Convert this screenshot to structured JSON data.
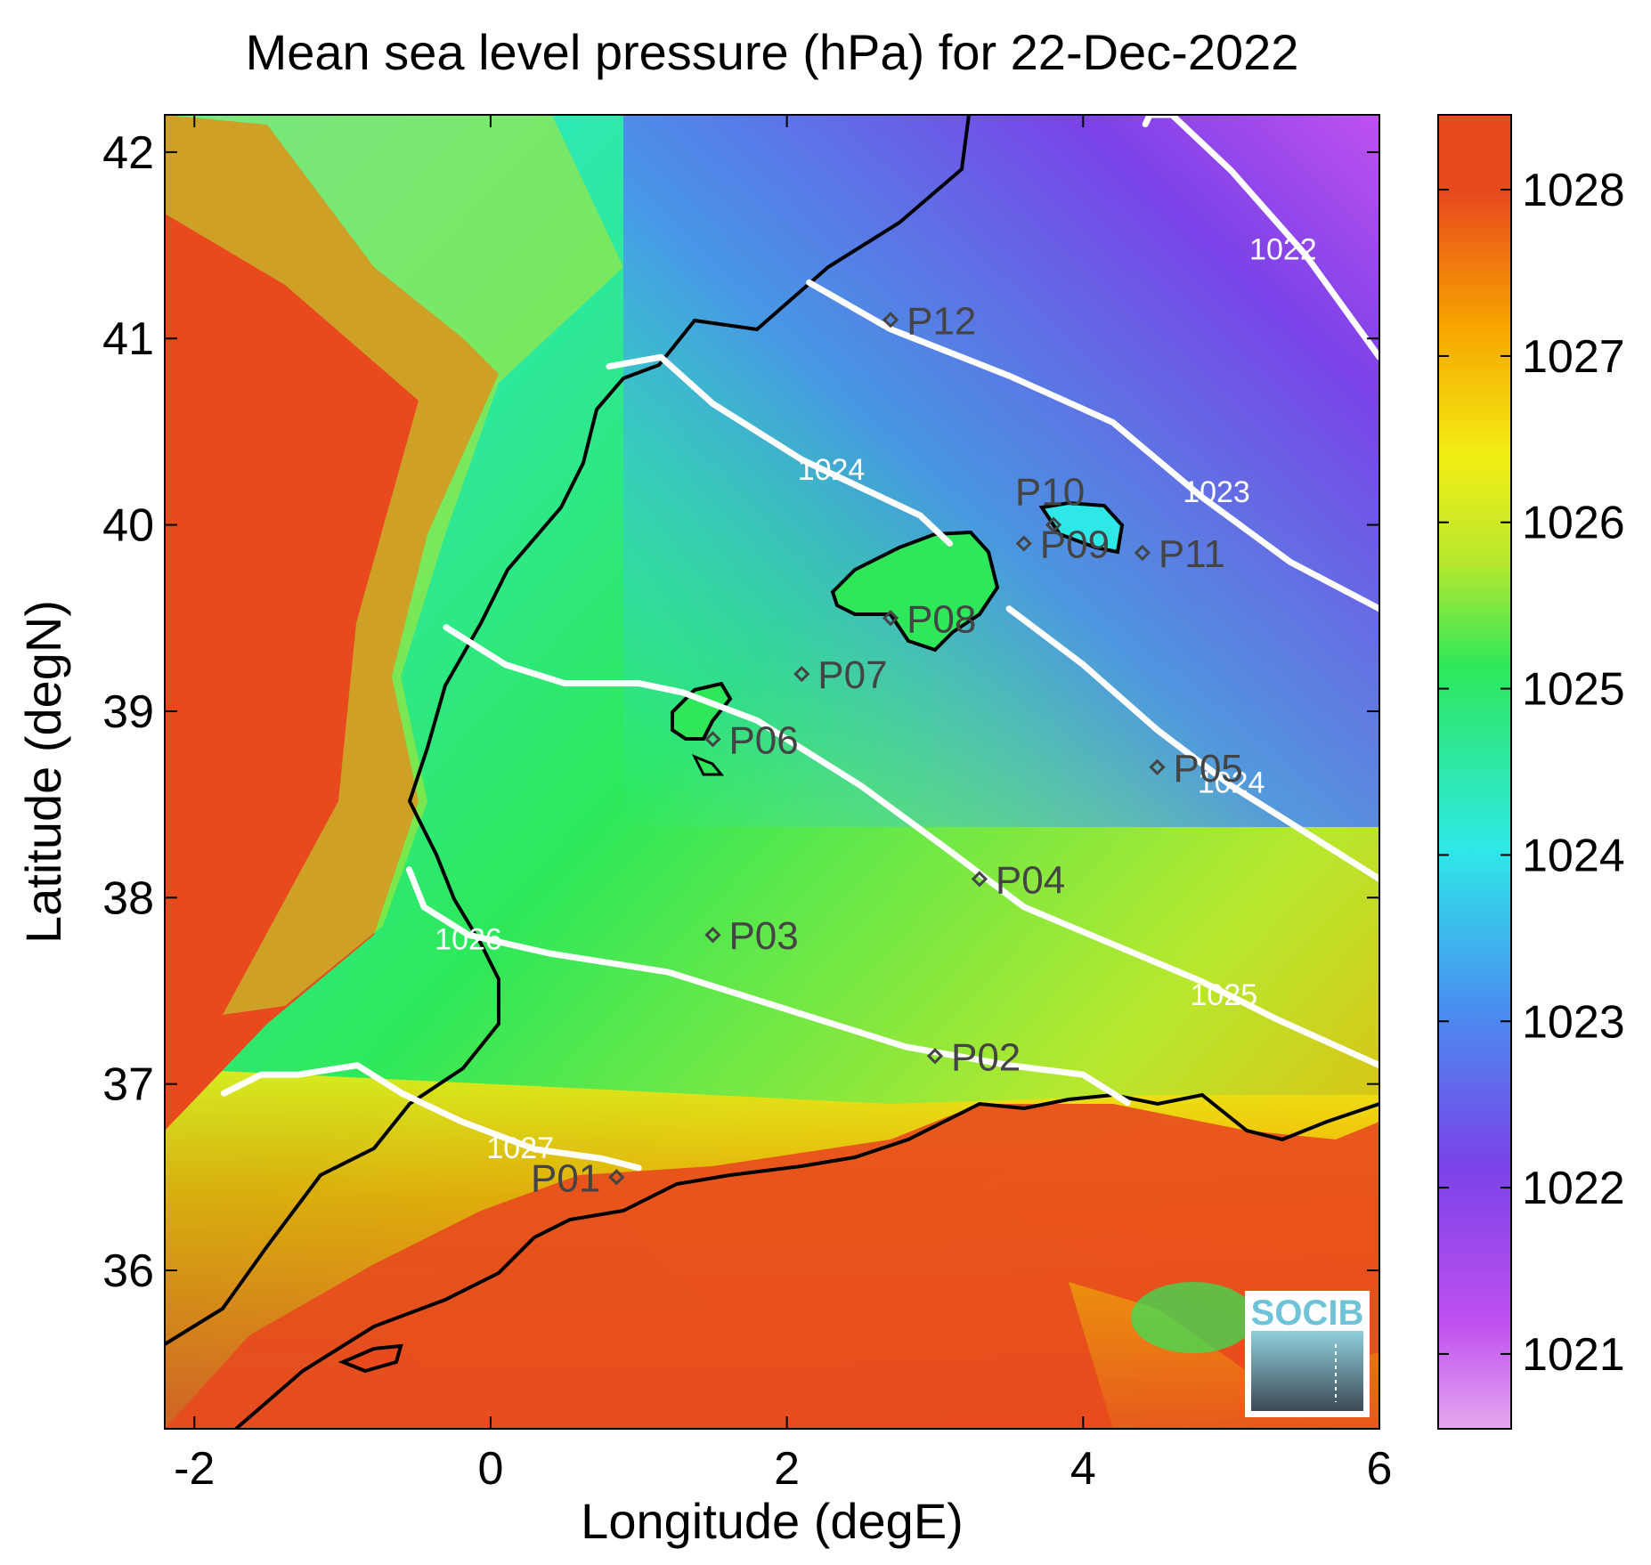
{
  "title": "Mean sea level pressure (hPa) for 22-Dec-2022",
  "x_axis": {
    "label": "Longitude (degE)",
    "range": [
      -2.2,
      6
    ],
    "ticks": [
      {
        "value": -2,
        "label": "-2"
      },
      {
        "value": 0,
        "label": "0"
      },
      {
        "value": 2,
        "label": "2"
      },
      {
        "value": 4,
        "label": "4"
      },
      {
        "value": 6,
        "label": "6"
      }
    ]
  },
  "y_axis": {
    "label": "Latitude (degN)",
    "range": [
      35.15,
      42.2
    ],
    "ticks": [
      {
        "value": 36,
        "label": "36"
      },
      {
        "value": 37,
        "label": "37"
      },
      {
        "value": 38,
        "label": "38"
      },
      {
        "value": 39,
        "label": "39"
      },
      {
        "value": 40,
        "label": "40"
      },
      {
        "value": 41,
        "label": "41"
      },
      {
        "value": 42,
        "label": "42"
      }
    ]
  },
  "colorbar": {
    "range": [
      1020.55,
      1028.45
    ],
    "ticks": [
      {
        "value": 1021,
        "label": "1021"
      },
      {
        "value": 1022,
        "label": "1022"
      },
      {
        "value": 1023,
        "label": "1023"
      },
      {
        "value": 1024,
        "label": "1024"
      },
      {
        "value": 1025,
        "label": "1025"
      },
      {
        "value": 1026,
        "label": "1026"
      },
      {
        "value": 1027,
        "label": "1027"
      },
      {
        "value": 1028,
        "label": "1028"
      }
    ],
    "colors": [
      "#e6a8ef",
      "#c050f0",
      "#7a42e8",
      "#4a8ef0",
      "#2ee8e8",
      "#2ee85a",
      "#b8e82e",
      "#f2ee14",
      "#f7a400",
      "#e84a1e"
    ]
  },
  "stations": [
    {
      "name": "P01",
      "lon": 0.85,
      "lat": 36.5
    },
    {
      "name": "P02",
      "lon": 3.0,
      "lat": 37.15
    },
    {
      "name": "P03",
      "lon": 1.5,
      "lat": 37.8
    },
    {
      "name": "P04",
      "lon": 3.3,
      "lat": 38.1
    },
    {
      "name": "P05",
      "lon": 4.5,
      "lat": 38.7
    },
    {
      "name": "P06",
      "lon": 1.5,
      "lat": 38.85
    },
    {
      "name": "P07",
      "lon": 2.1,
      "lat": 39.2
    },
    {
      "name": "P08",
      "lon": 2.7,
      "lat": 39.5
    },
    {
      "name": "P09",
      "lon": 3.6,
      "lat": 39.9
    },
    {
      "name": "P10",
      "lon": 3.8,
      "lat": 40.0
    },
    {
      "name": "P11",
      "lon": 4.4,
      "lat": 39.85
    },
    {
      "name": "P12",
      "lon": 2.7,
      "lat": 41.1
    }
  ],
  "contours": [
    {
      "level": "1022",
      "label": "1022",
      "points": [
        [
          4.42,
          42.15
        ],
        [
          4.45,
          42.2
        ],
        [
          4.6,
          42.2
        ],
        [
          5.0,
          41.9
        ],
        [
          5.5,
          41.45
        ],
        [
          6.0,
          40.9
        ]
      ],
      "label_at": [
        5.35,
        41.48
      ]
    },
    {
      "level": "1023",
      "label": "1023",
      "points": [
        [
          2.15,
          41.3
        ],
        [
          2.7,
          41.05
        ],
        [
          3.5,
          40.8
        ],
        [
          4.2,
          40.55
        ],
        [
          4.8,
          40.15
        ],
        [
          5.4,
          39.8
        ],
        [
          6.0,
          39.55
        ]
      ],
      "label_at": [
        4.9,
        40.18
      ]
    },
    {
      "level": "1024",
      "label": "1024",
      "points": [
        [
          0.8,
          40.85
        ],
        [
          1.15,
          40.9
        ],
        [
          1.5,
          40.65
        ],
        [
          2.1,
          40.35
        ],
        [
          2.5,
          40.2
        ],
        [
          2.9,
          40.05
        ],
        [
          3.1,
          39.9
        ]
      ],
      "label_at": [
        2.3,
        40.3
      ]
    },
    {
      "level": "1024",
      "label": "1024",
      "points": [
        [
          3.5,
          39.55
        ],
        [
          4.0,
          39.25
        ],
        [
          4.5,
          38.9
        ],
        [
          5.0,
          38.6
        ],
        [
          5.5,
          38.35
        ],
        [
          6.0,
          38.1
        ]
      ],
      "label_at": [
        5.0,
        38.62
      ]
    },
    {
      "level": "1025",
      "label": "1025",
      "points": [
        [
          -0.3,
          39.45
        ],
        [
          0.1,
          39.25
        ],
        [
          0.5,
          39.15
        ],
        [
          1.0,
          39.15
        ],
        [
          1.3,
          39.1
        ],
        [
          1.8,
          38.95
        ],
        [
          2.5,
          38.6
        ],
        [
          3.1,
          38.25
        ],
        [
          3.6,
          37.95
        ],
        [
          4.2,
          37.75
        ],
        [
          4.8,
          37.55
        ],
        [
          5.3,
          37.35
        ],
        [
          6.0,
          37.1
        ]
      ],
      "label_at": [
        4.95,
        37.48
      ]
    },
    {
      "level": "1026",
      "label": "1026",
      "points": [
        [
          -0.55,
          38.15
        ],
        [
          -0.45,
          37.95
        ],
        [
          -0.15,
          37.8
        ],
        [
          0.4,
          37.7
        ],
        [
          1.2,
          37.6
        ],
        [
          2.0,
          37.4
        ],
        [
          2.8,
          37.2
        ],
        [
          3.5,
          37.1
        ],
        [
          4.0,
          37.05
        ],
        [
          4.3,
          36.9
        ]
      ],
      "label_at": [
        -0.15,
        37.78
      ]
    },
    {
      "level": "1027",
      "label": "1027",
      "points": [
        [
          -1.8,
          36.95
        ],
        [
          -1.55,
          37.05
        ],
        [
          -1.3,
          37.05
        ],
        [
          -0.9,
          37.1
        ],
        [
          -0.6,
          36.95
        ],
        [
          -0.2,
          36.8
        ],
        [
          0.3,
          36.65
        ],
        [
          0.75,
          36.6
        ],
        [
          1.0,
          36.55
        ]
      ],
      "label_at": [
        0.2,
        36.66
      ]
    }
  ],
  "logo": {
    "text": "SOCIB"
  }
}
